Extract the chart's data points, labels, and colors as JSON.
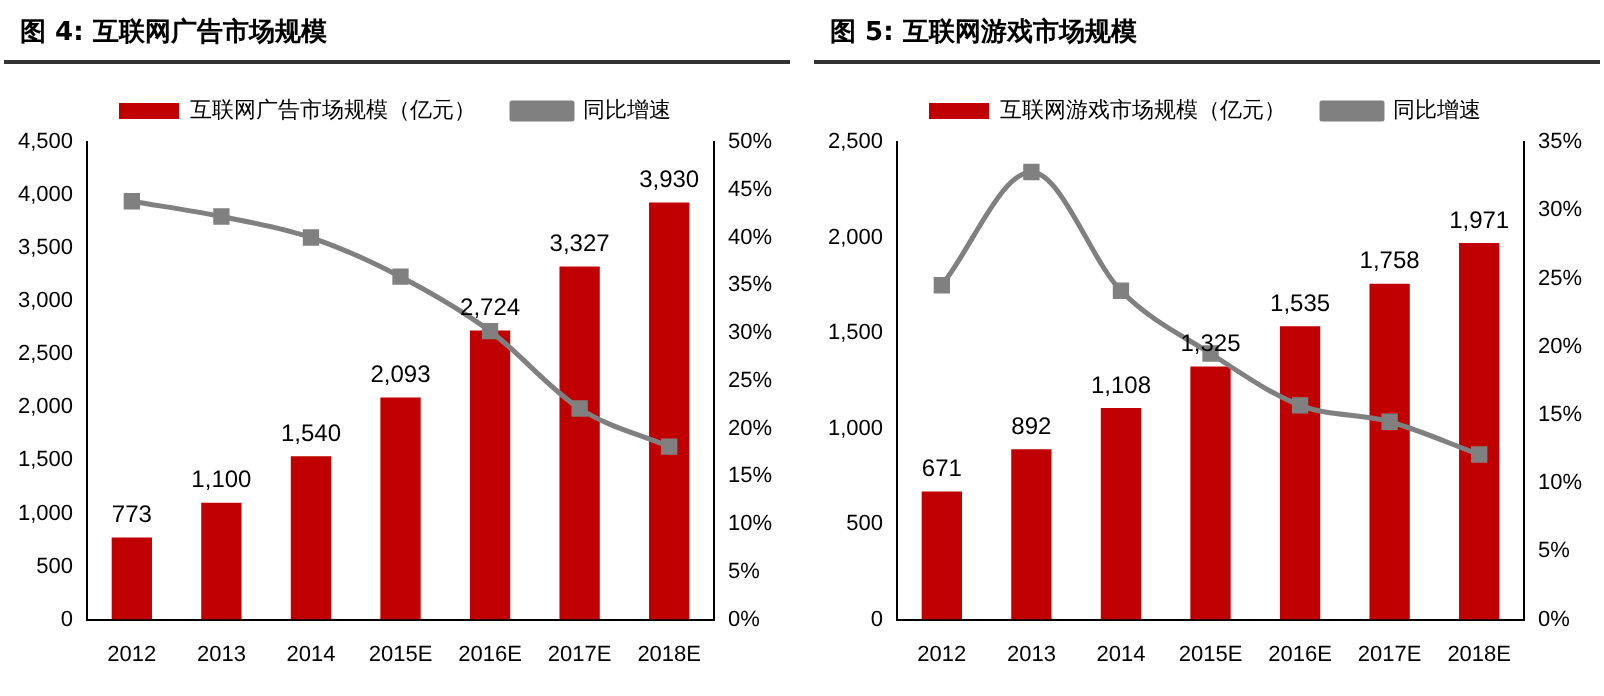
{
  "chart_data": [
    {
      "type": "bar",
      "title": "图 4:   互联网广告市场规模",
      "categories": [
        "2012",
        "2013",
        "2014",
        "2015E",
        "2016E",
        "2017E",
        "2018E"
      ],
      "series": [
        {
          "name": "互联网广告市场规模（亿元）",
          "color": "#c00000",
          "values": [
            773,
            1100,
            1540,
            2093,
            2724,
            3327,
            3930
          ],
          "value_labels": [
            "773",
            "1,100",
            "1,540",
            "2,093",
            "2,724",
            "3,327",
            "3,930"
          ]
        },
        {
          "name": "同比增速",
          "type": "line",
          "axis": "y2",
          "color": "#808080",
          "values": [
            43.8,
            42.2,
            40.0,
            35.9,
            30.2,
            22.1,
            18.1
          ]
        }
      ],
      "ylim": [
        0,
        4500
      ],
      "yticks": [
        {
          "value": 0,
          "label": "0"
        },
        {
          "value": 500,
          "label": "500"
        },
        {
          "value": 1000,
          "label": "1,000"
        },
        {
          "value": 1500,
          "label": "1,500"
        },
        {
          "value": 2000,
          "label": "2,000"
        },
        {
          "value": 2500,
          "label": "2,500"
        },
        {
          "value": 3000,
          "label": "3,000"
        },
        {
          "value": 3500,
          "label": "3,500"
        },
        {
          "value": 4000,
          "label": "4,000"
        },
        {
          "value": 4500,
          "label": "4,500"
        }
      ],
      "y2lim": [
        0,
        50
      ],
      "y2ticks": [
        {
          "value": 0,
          "label": "0%"
        },
        {
          "value": 5,
          "label": "5%"
        },
        {
          "value": 10,
          "label": "10%"
        },
        {
          "value": 15,
          "label": "15%"
        },
        {
          "value": 20,
          "label": "20%"
        },
        {
          "value": 25,
          "label": "25%"
        },
        {
          "value": 30,
          "label": "30%"
        },
        {
          "value": 35,
          "label": "35%"
        },
        {
          "value": 40,
          "label": "40%"
        },
        {
          "value": 45,
          "label": "45%"
        },
        {
          "value": 50,
          "label": "50%"
        }
      ],
      "grid": false,
      "legend": "top",
      "marker": "square"
    },
    {
      "type": "bar",
      "title": "图 5:   互联网游戏市场规模",
      "categories": [
        "2012",
        "2013",
        "2014",
        "2015E",
        "2016E",
        "2017E",
        "2018E"
      ],
      "series": [
        {
          "name": "互联网游戏市场规模（亿元）",
          "color": "#c00000",
          "values": [
            671,
            892,
            1108,
            1325,
            1535,
            1758,
            1971
          ],
          "value_labels": [
            "671",
            "892",
            "1,108",
            "1,325",
            "1,535",
            "1,758",
            "1,971"
          ]
        },
        {
          "name": "同比增速",
          "type": "line",
          "axis": "y2",
          "color": "#808080",
          "values": [
            24.5,
            32.8,
            24.1,
            19.5,
            15.7,
            14.5,
            12.1
          ]
        }
      ],
      "ylim": [
        0,
        2500
      ],
      "yticks": [
        {
          "value": 0,
          "label": "0"
        },
        {
          "value": 500,
          "label": "500"
        },
        {
          "value": 1000,
          "label": "1,000"
        },
        {
          "value": 1500,
          "label": "1,500"
        },
        {
          "value": 2000,
          "label": "2,000"
        },
        {
          "value": 2500,
          "label": "2,500"
        }
      ],
      "y2lim": [
        0,
        35
      ],
      "y2ticks": [
        {
          "value": 0,
          "label": "0%"
        },
        {
          "value": 5,
          "label": "5%"
        },
        {
          "value": 10,
          "label": "10%"
        },
        {
          "value": 15,
          "label": "15%"
        },
        {
          "value": 20,
          "label": "20%"
        },
        {
          "value": 25,
          "label": "25%"
        },
        {
          "value": 30,
          "label": "30%"
        },
        {
          "value": 35,
          "label": "35%"
        }
      ],
      "grid": false,
      "legend": "top",
      "marker": "square"
    }
  ]
}
